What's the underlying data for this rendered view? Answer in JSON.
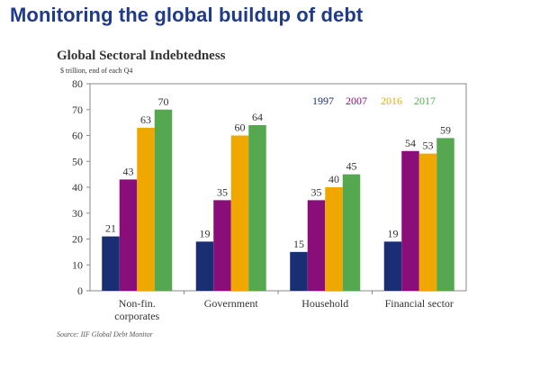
{
  "slide": {
    "title": "Monitoring the global buildup of debt"
  },
  "chart_data": {
    "type": "bar",
    "title": "Global Sectoral Indebtedness",
    "subtitle": "$ trillion, end of each Q4",
    "categories": [
      "Non-fin.\ncorporates",
      "Government",
      "Household",
      "Financial sector"
    ],
    "series": [
      {
        "name": "1997",
        "color": "#1a2f73",
        "values": [
          21,
          19,
          15,
          19
        ]
      },
      {
        "name": "2007",
        "color": "#8a0e7a",
        "values": [
          43,
          35,
          35,
          54
        ]
      },
      {
        "name": "2016",
        "color": "#f0a800",
        "values": [
          63,
          60,
          40,
          53
        ]
      },
      {
        "name": "2017",
        "color": "#55a84f",
        "values": [
          70,
          64,
          45,
          59
        ]
      }
    ],
    "ylim": [
      0,
      80
    ],
    "yticks": [
      0,
      10,
      20,
      30,
      40,
      50,
      60,
      70,
      80
    ],
    "grid": false,
    "legend_position": "top-right",
    "source": "Source: IIF Global Debt Monitor"
  }
}
